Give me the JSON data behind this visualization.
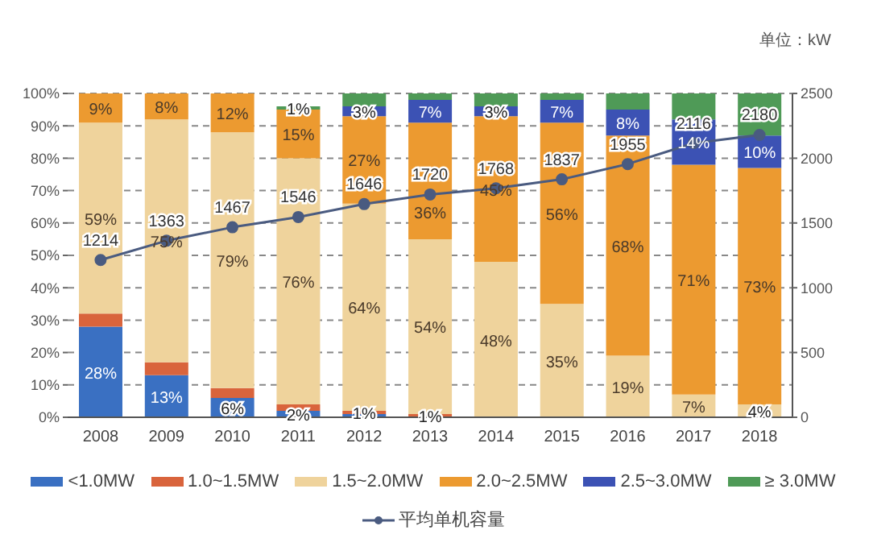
{
  "chart_data": {
    "type": "bar",
    "stacked": true,
    "categories": [
      "2008",
      "2009",
      "2010",
      "2011",
      "2012",
      "2013",
      "2014",
      "2015",
      "2016",
      "2017",
      "2018"
    ],
    "series": [
      {
        "name": "<1.0MW",
        "color": "#3a70c2",
        "values": [
          28,
          13,
          6,
          2,
          1,
          0,
          0,
          0,
          0,
          0,
          0
        ],
        "value_labels": [
          "28%",
          "13%",
          "6%",
          "2%",
          null,
          null,
          null,
          null,
          null,
          null,
          null
        ]
      },
      {
        "name": "1.0~1.5MW",
        "color": "#d9643c",
        "values": [
          4,
          4,
          3,
          2,
          1,
          1,
          0,
          0,
          0,
          0,
          0
        ],
        "value_labels": [
          null,
          null,
          null,
          null,
          "1%",
          "1%",
          null,
          null,
          null,
          null,
          null
        ]
      },
      {
        "name": "1.5~2.0MW",
        "color": "#efd39c",
        "values": [
          59,
          75,
          79,
          76,
          64,
          54,
          48,
          35,
          19,
          7,
          4
        ],
        "value_labels": [
          "59%",
          "75%",
          "79%",
          "76%",
          "64%",
          "54%",
          "48%",
          "35%",
          "19%",
          "7%",
          "4%"
        ]
      },
      {
        "name": "2.0~2.5MW",
        "color": "#ec9a30",
        "values": [
          9,
          8,
          12,
          15,
          27,
          36,
          45,
          56,
          68,
          71,
          73
        ],
        "value_labels": [
          "9%",
          "8%",
          "12%",
          "15%",
          "27%",
          "36%",
          "45%",
          "56%",
          "68%",
          "71%",
          "73%"
        ]
      },
      {
        "name": "2.5~3.0MW",
        "color": "#3c52b4",
        "values": [
          0,
          0,
          0,
          0,
          3,
          7,
          3,
          7,
          8,
          14,
          10
        ],
        "value_labels": [
          null,
          null,
          null,
          null,
          "3%",
          "7%",
          "3%",
          "7%",
          "8%",
          "14%",
          "10%"
        ]
      },
      {
        "name": "≥ 3.0MW",
        "color": "#4f9a57",
        "values": [
          0,
          0,
          0,
          1,
          4,
          2,
          4,
          2,
          5,
          8,
          13
        ],
        "value_labels": [
          null,
          null,
          null,
          "1%",
          null,
          null,
          null,
          null,
          null,
          null,
          null
        ]
      },
      {
        "name": "平均单机容量",
        "type": "line",
        "axis": "y2",
        "color": "#4a5b80",
        "marker": "circle",
        "values": [
          1214,
          1363,
          1467,
          1546,
          1646,
          1720,
          1768,
          1837,
          1955,
          2116,
          2180
        ],
        "value_labels": [
          "1214",
          "1363",
          "1467",
          "1546",
          "1646",
          "1720",
          "1768",
          "1837",
          "1955",
          "2116",
          "2180"
        ]
      }
    ],
    "ylim": [
      0,
      100
    ],
    "yticks": [
      {
        "value": 0,
        "label": "0%"
      },
      {
        "value": 10,
        "label": "10%"
      },
      {
        "value": 20,
        "label": "20%"
      },
      {
        "value": 30,
        "label": "30%"
      },
      {
        "value": 40,
        "label": "40%"
      },
      {
        "value": 50,
        "label": "50%"
      },
      {
        "value": 60,
        "label": "60%"
      },
      {
        "value": 70,
        "label": "70%"
      },
      {
        "value": 80,
        "label": "80%"
      },
      {
        "value": 90,
        "label": "90%"
      },
      {
        "value": 100,
        "label": "100%"
      }
    ],
    "y2lim": [
      0,
      2500
    ],
    "y2ticks": [
      0,
      500,
      1000,
      1500,
      2000,
      2500
    ],
    "annotations": [
      "单位：kW"
    ],
    "grid": "y",
    "legend": "bottom"
  }
}
